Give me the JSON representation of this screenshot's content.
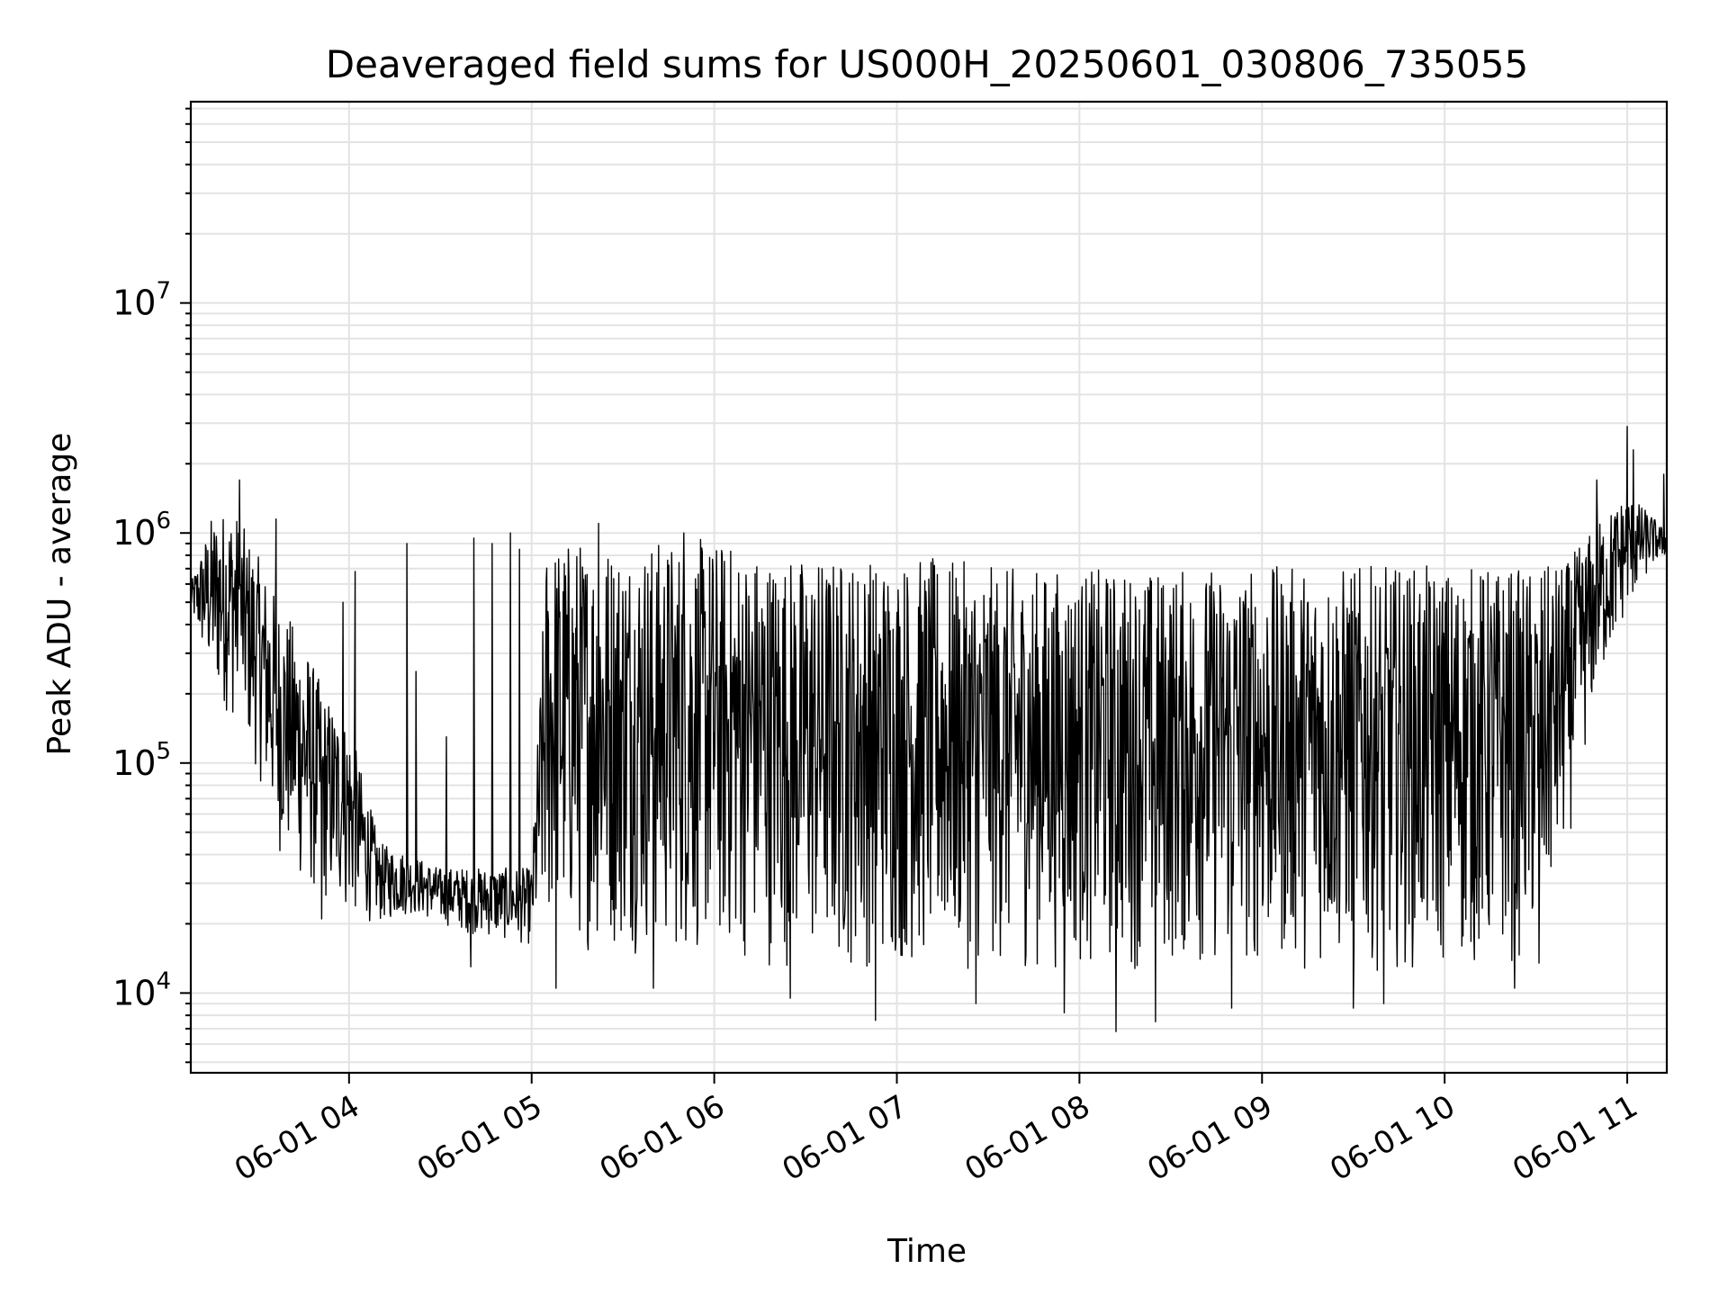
{
  "chart_data": {
    "type": "line",
    "title": "Deaveraged field sums for US000H_20250601_030806_735055",
    "xlabel": "Time",
    "ylabel": "Peak ADU - average",
    "yscale": "log",
    "ylim": [
      4500,
      75000000
    ],
    "xlim": [
      "2025-06-01 03:08",
      "2025-06-01 11:13"
    ],
    "grid": true,
    "line_color": "#000000",
    "grid_color": "#e3e3e3",
    "x_ticks": [
      {
        "t": "2025-06-01 04:00",
        "label": "06-01 04"
      },
      {
        "t": "2025-06-01 05:00",
        "label": "06-01 05"
      },
      {
        "t": "2025-06-01 06:00",
        "label": "06-01 06"
      },
      {
        "t": "2025-06-01 07:00",
        "label": "06-01 07"
      },
      {
        "t": "2025-06-01 08:00",
        "label": "06-01 08"
      },
      {
        "t": "2025-06-01 09:00",
        "label": "06-01 09"
      },
      {
        "t": "2025-06-01 10:00",
        "label": "06-01 10"
      },
      {
        "t": "2025-06-01 11:00",
        "label": "06-01 11"
      }
    ],
    "y_ticks": [
      {
        "value": 10000,
        "base": "10",
        "exp": "4"
      },
      {
        "value": 100000,
        "base": "10",
        "exp": "5"
      },
      {
        "value": 1000000,
        "base": "10",
        "exp": "6"
      },
      {
        "value": 10000000,
        "base": "10",
        "exp": "7"
      }
    ],
    "series": [
      {
        "envelope_x": [
          "2025-06-01 03:08",
          "2025-06-01 03:15",
          "2025-06-01 03:22",
          "2025-06-01 03:30",
          "2025-06-01 03:37",
          "2025-06-01 03:45",
          "2025-06-01 03:52",
          "2025-06-01 04:00",
          "2025-06-01 04:10",
          "2025-06-01 04:20",
          "2025-06-01 04:30",
          "2025-06-01 04:40",
          "2025-06-01 04:50",
          "2025-06-01 05:00",
          "2025-06-01 05:05",
          "2025-06-01 05:15",
          "2025-06-01 05:30",
          "2025-06-01 05:45",
          "2025-06-01 06:00",
          "2025-06-01 06:15",
          "2025-06-01 06:30",
          "2025-06-01 06:45",
          "2025-06-01 07:00",
          "2025-06-01 07:15",
          "2025-06-01 07:30",
          "2025-06-01 07:45",
          "2025-06-01 08:00",
          "2025-06-01 08:15",
          "2025-06-01 08:30",
          "2025-06-01 08:45",
          "2025-06-01 09:00",
          "2025-06-01 09:15",
          "2025-06-01 09:30",
          "2025-06-01 09:45",
          "2025-06-01 10:00",
          "2025-06-01 10:15",
          "2025-06-01 10:30",
          "2025-06-01 10:40",
          "2025-06-01 10:50",
          "2025-06-01 11:00",
          "2025-06-01 11:08",
          "2025-06-01 11:13"
        ],
        "envelope_high": [
          600000,
          1200000,
          1300000,
          800000,
          500000,
          350000,
          200000,
          150000,
          45000,
          40000,
          35000,
          35000,
          35000,
          35000,
          950000,
          950000,
          950000,
          950000,
          950000,
          850000,
          800000,
          800000,
          800000,
          780000,
          720000,
          700000,
          700000,
          700000,
          700000,
          720000,
          720000,
          720000,
          720000,
          720000,
          720000,
          720000,
          700000,
          750000,
          1100000,
          1500000,
          1200000,
          1000000
        ],
        "envelope_low": [
          450000,
          200000,
          150000,
          90000,
          40000,
          28000,
          24000,
          21000,
          20000,
          22000,
          20000,
          18000,
          17000,
          16000,
          16000,
          15000,
          15000,
          14000,
          14000,
          13000,
          12500,
          12500,
          12500,
          12500,
          12500,
          12500,
          12500,
          12500,
          12500,
          12500,
          12500,
          12500,
          12500,
          12500,
          12500,
          12500,
          14000,
          40000,
          200000,
          450000,
          700000,
          800000
        ],
        "spikes": [
          {
            "t": "2025-06-01 03:24",
            "value": 1700000
          },
          {
            "t": "2025-06-01 03:36",
            "value": 1150000
          },
          {
            "t": "2025-06-01 03:58",
            "value": 500000
          },
          {
            "t": "2025-06-01 04:02",
            "value": 680000
          },
          {
            "t": "2025-06-01 04:19",
            "value": 900000
          },
          {
            "t": "2025-06-01 04:22",
            "value": 250000
          },
          {
            "t": "2025-06-01 04:32",
            "value": 130000
          },
          {
            "t": "2025-06-01 04:41",
            "value": 950000
          },
          {
            "t": "2025-06-01 04:47",
            "value": 900000
          },
          {
            "t": "2025-06-01 04:53",
            "value": 1000000
          },
          {
            "t": "2025-06-01 04:56",
            "value": 850000
          },
          {
            "t": "2025-06-01 05:22",
            "value": 1100000
          },
          {
            "t": "2025-06-01 05:50",
            "value": 1000000
          },
          {
            "t": "2025-06-01 10:50",
            "value": 1700000
          },
          {
            "t": "2025-06-01 11:00",
            "value": 2900000
          },
          {
            "t": "2025-06-01 11:02",
            "value": 2300000
          },
          {
            "t": "2025-06-01 11:12",
            "value": 1800000
          }
        ],
        "dips": [
          {
            "t": "2025-06-01 03:51",
            "value": 21000
          },
          {
            "t": "2025-06-01 04:40",
            "value": 13000
          },
          {
            "t": "2025-06-01 05:08",
            "value": 10500
          },
          {
            "t": "2025-06-01 05:40",
            "value": 10500
          },
          {
            "t": "2025-06-01 06:25",
            "value": 9500
          },
          {
            "t": "2025-06-01 06:53",
            "value": 7600
          },
          {
            "t": "2025-06-01 07:26",
            "value": 9000
          },
          {
            "t": "2025-06-01 07:55",
            "value": 8200
          },
          {
            "t": "2025-06-01 08:12",
            "value": 6800
          },
          {
            "t": "2025-06-01 08:25",
            "value": 7500
          },
          {
            "t": "2025-06-01 08:50",
            "value": 8600
          },
          {
            "t": "2025-06-01 09:30",
            "value": 8600
          },
          {
            "t": "2025-06-01 09:40",
            "value": 9000
          },
          {
            "t": "2025-06-01 10:23",
            "value": 10500
          },
          {
            "t": "2025-06-01 10:31",
            "value": 13500
          }
        ]
      }
    ]
  }
}
